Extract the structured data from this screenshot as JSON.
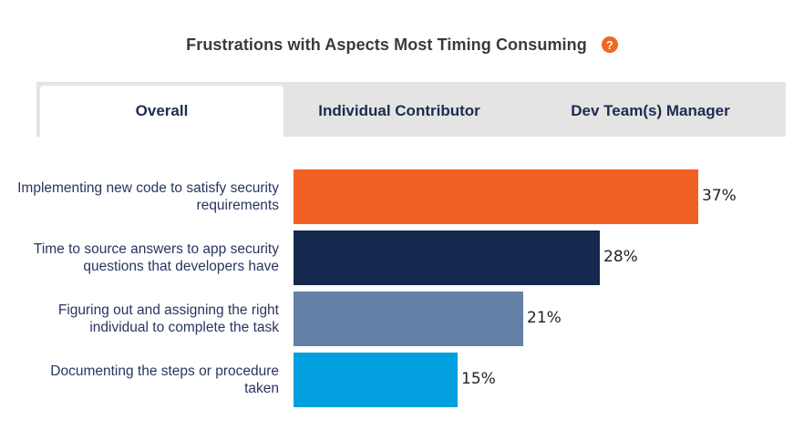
{
  "header": {
    "title": "Frustrations with Aspects Most Timing Consuming",
    "help_icon": "question-mark-icon",
    "help_glyph": "?"
  },
  "tabs": [
    {
      "label": "Overall",
      "active": true
    },
    {
      "label": "Individual Contributor",
      "active": false
    },
    {
      "label": "Dev Team(s) Manager",
      "active": false
    }
  ],
  "chart_data": {
    "type": "bar",
    "orientation": "horizontal",
    "title": "Frustrations with Aspects Most Timing Consuming",
    "categories": [
      "Implementing new code to satisfy security requirements",
      "Time to source answers to app security questions that developers have",
      "Figuring out and assigning the right individual to complete the task",
      "Documenting the steps or procedure taken"
    ],
    "values": [
      37,
      28,
      21,
      15
    ],
    "value_labels": [
      "37%",
      "28%",
      "21%",
      "15%"
    ],
    "colors": [
      "#f26124",
      "#15284e",
      "#6580a6",
      "#029fe0"
    ],
    "xlim": [
      0,
      100
    ],
    "unit": "%",
    "grid": false,
    "legend": "none"
  }
}
